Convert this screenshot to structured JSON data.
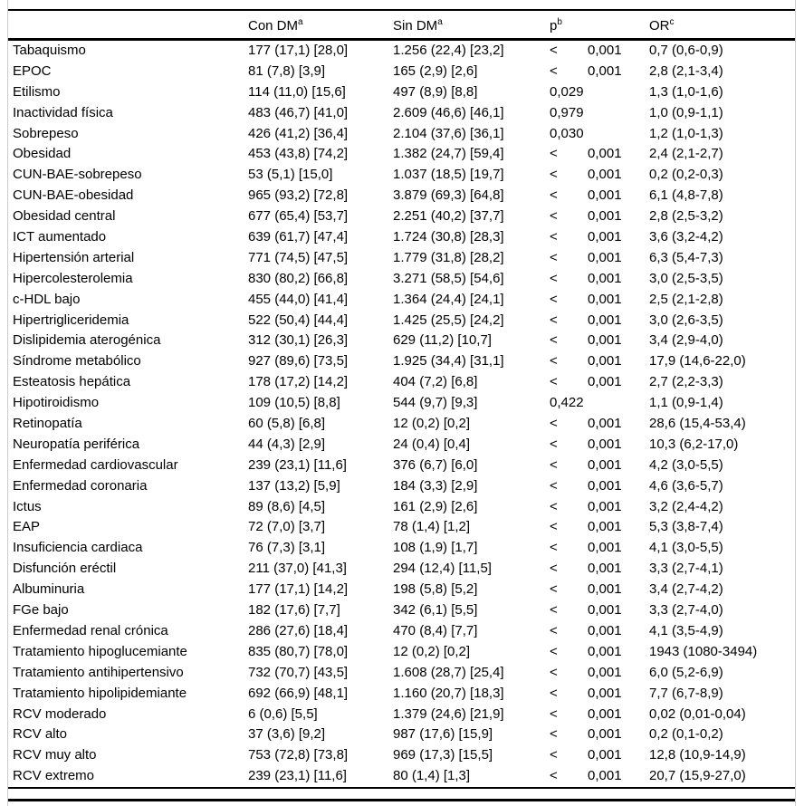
{
  "table": {
    "columns": [
      {
        "label": "",
        "sup": ""
      },
      {
        "label": "Con DM",
        "sup": "a"
      },
      {
        "label": "Sin DM",
        "sup": "a"
      },
      {
        "label": "p",
        "sup": "b"
      },
      {
        "label": "OR",
        "sup": "c"
      }
    ],
    "rows": [
      {
        "label": "Tabaquismo",
        "con_dm": "177 (17,1) [28,0]",
        "sin_dm": "1.256 (22,4) [23,2]",
        "p": "< 0,001",
        "or": "0,7 (0,6-0,9)"
      },
      {
        "label": "EPOC",
        "con_dm": "81 (7,8) [3,9]",
        "sin_dm": "165 (2,9) [2,6]",
        "p": "< 0,001",
        "or": "2,8 (2,1-3,4)"
      },
      {
        "label": "Etilismo",
        "con_dm": "114 (11,0) [15,6]",
        "sin_dm": "497 (8,9) [8,8]",
        "p": "0,029",
        "or": "1,3 (1,0-1,6)"
      },
      {
        "label": "Inactividad física",
        "con_dm": "483 (46,7) [41,0]",
        "sin_dm": "2.609 (46,6) [46,1]",
        "p": "0,979",
        "or": "1,0 (0,9-1,1)"
      },
      {
        "label": "Sobrepeso",
        "con_dm": "426 (41,2) [36,4]",
        "sin_dm": "2.104 (37,6) [36,1]",
        "p": "0,030",
        "or": "1,2 (1,0-1,3)"
      },
      {
        "label": "Obesidad",
        "con_dm": "453 (43,8) [74,2]",
        "sin_dm": "1.382 (24,7) [59,4]",
        "p": "< 0,001",
        "or": "2,4 (2,1-2,7)"
      },
      {
        "label": "CUN-BAE-sobrepeso",
        "con_dm": "53 (5,1) [15,0]",
        "sin_dm": "1.037 (18,5) [19,7]",
        "p": "< 0,001",
        "or": "0,2 (0,2-0,3)"
      },
      {
        "label": "CUN-BAE-obesidad",
        "con_dm": "965 (93,2) [72,8]",
        "sin_dm": "3.879 (69,3) [64,8]",
        "p": "< 0,001",
        "or": "6,1 (4,8-7,8)"
      },
      {
        "label": "Obesidad central",
        "con_dm": "677 (65,4) [53,7]",
        "sin_dm": "2.251 (40,2) [37,7]",
        "p": "< 0,001",
        "or": "2,8 (2,5-3,2)"
      },
      {
        "label": "ICT aumentado",
        "con_dm": "639 (61,7) [47,4]",
        "sin_dm": "1.724 (30,8) [28,3]",
        "p": "< 0,001",
        "or": "3,6 (3,2-4,2)"
      },
      {
        "label": "Hipertensión arterial",
        "con_dm": "771 (74,5) [47,5]",
        "sin_dm": "1.779 (31,8) [28,2]",
        "p": "< 0,001",
        "or": "6,3 (5,4-7,3)"
      },
      {
        "label": "Hipercolesterolemia",
        "con_dm": "830 (80,2) [66,8]",
        "sin_dm": "3.271 (58,5) [54,6]",
        "p": "< 0,001",
        "or": "3,0 (2,5-3,5)"
      },
      {
        "label": "c-HDL bajo",
        "con_dm": "455 (44,0) [41,4]",
        "sin_dm": "1.364 (24,4) [24,1]",
        "p": "< 0,001",
        "or": "2,5 (2,1-2,8)"
      },
      {
        "label": "Hipertrigliceridemia",
        "con_dm": "522 (50,4) [44,4]",
        "sin_dm": "1.425 (25,5) [24,2]",
        "p": "< 0,001",
        "or": "3,0 (2,6-3,5)"
      },
      {
        "label": "Dislipidemia aterogénica",
        "con_dm": "312 (30,1) [26,3]",
        "sin_dm": "629 (11,2) [10,7]",
        "p": "< 0,001",
        "or": "3,4 (2,9-4,0)"
      },
      {
        "label": "Síndrome metabólico",
        "con_dm": "927 (89,6) [73,5]",
        "sin_dm": "1.925 (34,4) [31,1]",
        "p": "< 0,001",
        "or": "17,9 (14,6-22,0)"
      },
      {
        "label": "Esteatosis hepática",
        "con_dm": "178 (17,2) [14,2]",
        "sin_dm": "404 (7,2) [6,8]",
        "p": "< 0,001",
        "or": "2,7 (2,2-3,3)"
      },
      {
        "label": "Hipotiroidismo",
        "con_dm": "109 (10,5) [8,8]",
        "sin_dm": "544 (9,7) [9,3]",
        "p": "0,422",
        "or": "1,1 (0,9-1,4)"
      },
      {
        "label": "Retinopatía",
        "con_dm": "60 (5,8) [6,8]",
        "sin_dm": "12 (0,2) [0,2]",
        "p": "< 0,001",
        "or": "28,6 (15,4-53,4)"
      },
      {
        "label": "Neuropatía periférica",
        "con_dm": "44 (4,3) [2,9]",
        "sin_dm": "24 (0,4) [0,4]",
        "p": "< 0,001",
        "or": "10,3 (6,2-17,0)"
      },
      {
        "label": "Enfermedad cardiovascular",
        "con_dm": "239 (23,1) [11,6]",
        "sin_dm": "376 (6,7) [6,0]",
        "p": "< 0,001",
        "or": "4,2 (3,0-5,5)"
      },
      {
        "label": "Enfermedad coronaria",
        "con_dm": "137 (13,2) [5,9]",
        "sin_dm": "184 (3,3) [2,9]",
        "p": "< 0,001",
        "or": "4,6 (3,6-5,7)"
      },
      {
        "label": "Ictus",
        "con_dm": "89 (8,6) [4,5]",
        "sin_dm": "161 (2,9) [2,6]",
        "p": "< 0,001",
        "or": "3,2 (2,4-4,2)"
      },
      {
        "label": "EAP",
        "con_dm": "72 (7,0) [3,7]",
        "sin_dm": "78 (1,4) [1,2]",
        "p": "< 0,001",
        "or": "5,3 (3,8-7,4)"
      },
      {
        "label": "Insuficiencia cardiaca",
        "con_dm": "76 (7,3) [3,1]",
        "sin_dm": "108 (1,9) [1,7]",
        "p": "< 0,001",
        "or": "4,1 (3,0-5,5)"
      },
      {
        "label": "Disfunción eréctil",
        "con_dm": "211 (37,0) [41,3]",
        "sin_dm": "294 (12,4) [11,5]",
        "p": "< 0,001",
        "or": "3,3 (2,7-4,1)"
      },
      {
        "label": "Albuminuria",
        "con_dm": "177 (17,1) [14,2]",
        "sin_dm": "198 (5,8) [5,2]",
        "p": "< 0,001",
        "or": "3,4 (2,7-4,2)"
      },
      {
        "label": "FGe bajo",
        "con_dm": "182 (17,6) [7,7]",
        "sin_dm": "342 (6,1) [5,5]",
        "p": "< 0,001",
        "or": "3,3 (2,7-4,0)"
      },
      {
        "label": "Enfermedad renal crónica",
        "con_dm": "286 (27,6) [18,4]",
        "sin_dm": "470 (8,4) [7,7]",
        "p": "< 0,001",
        "or": "4,1 (3,5-4,9)"
      },
      {
        "label": "Tratamiento hipoglucemiante",
        "con_dm": "835 (80,7) [78,0]",
        "sin_dm": "12 (0,2) [0,2]",
        "p": "< 0,001",
        "or": "1943 (1080-3494)"
      },
      {
        "label": "Tratamiento antihipertensivo",
        "con_dm": "732 (70,7) [43,5]",
        "sin_dm": "1.608 (28,7) [25,4]",
        "p": "< 0,001",
        "or": "6,0 (5,2-6,9)"
      },
      {
        "label": "Tratamiento hipolipidemiante",
        "con_dm": "692 (66,9) [48,1]",
        "sin_dm": "1.160 (20,7) [18,3]",
        "p": "< 0,001",
        "or": "7,7 (6,7-8,9)"
      },
      {
        "label": "RCV moderado",
        "con_dm": "6 (0,6) [5,5]",
        "sin_dm": "1.379 (24,6) [21,9]",
        "p": "< 0,001",
        "or": "0,02 (0,01-0,04)"
      },
      {
        "label": "RCV alto",
        "con_dm": "37 (3,6) [9,2]",
        "sin_dm": "987 (17,6) [15,9]",
        "p": "< 0,001",
        "or": "0,2 (0,1-0,2)"
      },
      {
        "label": "RCV muy alto",
        "con_dm": "753 (72,8) [73,8]",
        "sin_dm": "969 (17,3) [15,5]",
        "p": "< 0,001",
        "or": "12,8 (10,9-14,9)"
      },
      {
        "label": "RCV extremo",
        "con_dm": "239 (23,1) [11,6]",
        "sin_dm": "80 (1,4) [1,3]",
        "p": "< 0,001",
        "or": "20,7 (15,9-27,0)"
      }
    ]
  }
}
